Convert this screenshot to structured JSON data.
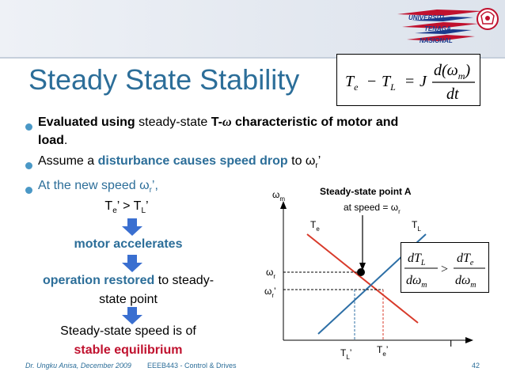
{
  "slide": {
    "title": "Steady State Stability",
    "logo": {
      "line1": "UNIVERSITI",
      "line2": "TENAGA",
      "line3": "NASIONAL"
    },
    "equation": {
      "lhs": "T",
      "sub_e": "e",
      "minus": "−",
      "T2": "T",
      "sub_L": "L",
      "equals": "=",
      "J": "J",
      "num": "d(ω",
      "num_sub": "m",
      "num_close": ")",
      "den": "dt"
    },
    "bullets": [
      {
        "a": "Evaluated using",
        "b": "steady-state",
        "c": "T-",
        "d": "ω",
        "e": "characteristic of motor and",
        "f": "load",
        "g": "."
      },
      {
        "a": "Assume a",
        "b": "disturbance causes",
        "c": "speed drop",
        "d": "to ω",
        "e": "r",
        "f": "’"
      },
      {
        "a": "At the new speed ω",
        "b": "r",
        "c": "’,"
      }
    ],
    "flow": {
      "cond_T1": "T",
      "cond_e": "e",
      "cond_mid": "’ > T",
      "cond_L": "L",
      "cond_end": "’",
      "step1": "motor accelerates",
      "step2_red": "operation restored",
      "step2_rest": "to steady-",
      "step2_line2": "state point",
      "conclusion": "Steady-state speed is of",
      "result": "stable equilibrium"
    },
    "plot": {
      "y_axis": "ω",
      "y_sub": "m",
      "x_axis": "T",
      "point_title": "Steady-state point A",
      "point_sub": "at speed = ω",
      "point_sub_r": "r",
      "te_label": "T",
      "te_sub": "e",
      "tl_label": "T",
      "tl_sub": "L",
      "wr": "ω",
      "wr_sub": "r",
      "wr2": "ω",
      "wr2_sub": "r",
      "wr2_prime": "’",
      "tl_prime": "T",
      "tl_prime_sub": "L",
      "tl_prime_p": "’",
      "te_prime": "T",
      "te_prime_sub": "e",
      "te_prime_p": "’"
    },
    "inequality": {
      "dTL": "dT",
      "L": "L",
      "dw": "dω",
      "m": "m",
      "gt": ">",
      "dTe": "dT",
      "e": "e",
      "dw2": "dω",
      "m2": "m"
    },
    "footer": {
      "author": "Dr. Ungku Anisa, December 2009",
      "course": "EEEB443 - Control & Drives",
      "page": "42"
    },
    "colors": {
      "title": "#2c6e99",
      "emphasis_red": "#c0112e",
      "bullet": "#4a98c6",
      "arrow": "#3a6fd0",
      "line_te": "#d83a2a",
      "line_tl": "#2d6fa6"
    }
  }
}
